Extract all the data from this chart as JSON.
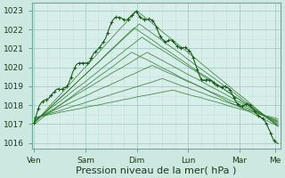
{
  "background_color": "#cce8e0",
  "plot_bg": "#d8eeea",
  "grid_color_major": "#b0d0cc",
  "grid_color_minor": "#c4deda",
  "line_color_dark": "#1a5c1a",
  "line_color_med": "#2a7a2a",
  "ylim": [
    1015.7,
    1023.4
  ],
  "yticks": [
    1016,
    1017,
    1018,
    1019,
    1020,
    1021,
    1022,
    1023
  ],
  "xlabel": "Pression niveau de la mer( hPa )",
  "xlabel_fontsize": 8,
  "tick_fontsize": 6.5,
  "day_labels": [
    "Ven",
    "Sam",
    "Dim",
    "Lun",
    "Mar",
    "Me"
  ],
  "day_positions": [
    0,
    1,
    2,
    3,
    4,
    4.7
  ]
}
